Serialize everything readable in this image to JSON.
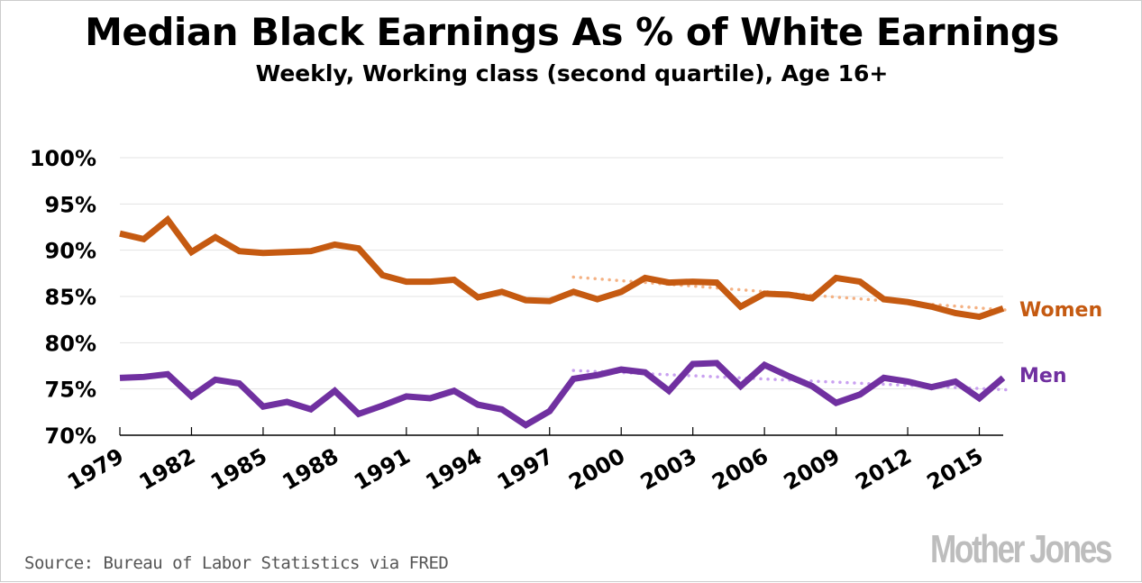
{
  "title": "Median Black Earnings As % of White Earnings",
  "subtitle": "Weekly, Working class (second quartile), Age 16+",
  "source": "Source: Bureau of Labor Statistics via FRED",
  "logo_text": "Mother Jones",
  "chart_data": {
    "type": "line",
    "title": "Median Black Earnings As % of White Earnings",
    "subtitle": "Weekly, Working class (second quartile), Age 16+",
    "xlabel": "",
    "ylabel": "",
    "ylim": [
      70,
      100
    ],
    "xlim": [
      1979,
      2016
    ],
    "grid": true,
    "y_ticks": [
      "70%",
      "75%",
      "80%",
      "85%",
      "90%",
      "95%",
      "100%"
    ],
    "y_tick_values": [
      70,
      75,
      80,
      85,
      90,
      95,
      100
    ],
    "x_ticks": [
      "1979",
      "1982",
      "1985",
      "1988",
      "1991",
      "1994",
      "1997",
      "2000",
      "2003",
      "2006",
      "2009",
      "2012",
      "2015"
    ],
    "x": [
      1979,
      1980,
      1981,
      1982,
      1983,
      1984,
      1985,
      1986,
      1987,
      1988,
      1989,
      1990,
      1991,
      1992,
      1993,
      1994,
      1995,
      1996,
      1997,
      1998,
      1999,
      2000,
      2001,
      2002,
      2003,
      2004,
      2005,
      2006,
      2007,
      2008,
      2009,
      2010,
      2011,
      2012,
      2013,
      2014,
      2015,
      2016
    ],
    "series": [
      {
        "name": "Women",
        "color": "#c55a11",
        "values": [
          91.8,
          91.2,
          93.3,
          89.8,
          91.4,
          89.9,
          89.7,
          89.8,
          89.9,
          90.6,
          90.2,
          87.3,
          86.6,
          86.6,
          86.8,
          84.9,
          85.5,
          84.6,
          84.5,
          85.5,
          84.7,
          85.5,
          87.0,
          86.5,
          86.6,
          86.5,
          83.9,
          85.3,
          85.2,
          84.8,
          87.0,
          86.6,
          84.7,
          84.4,
          83.9,
          83.2,
          82.8,
          83.7
        ]
      },
      {
        "name": "Men",
        "color": "#7030a0",
        "values": [
          76.2,
          76.3,
          76.6,
          74.2,
          76.0,
          75.6,
          73.1,
          73.6,
          72.8,
          74.8,
          72.3,
          73.2,
          74.2,
          74.0,
          74.8,
          73.3,
          72.8,
          71.1,
          72.6,
          76.1,
          76.5,
          77.1,
          76.8,
          74.8,
          77.7,
          77.8,
          75.3,
          77.6,
          76.4,
          75.3,
          73.5,
          74.4,
          76.2,
          75.8,
          75.2,
          75.8,
          74.0,
          76.2
        ]
      }
    ],
    "trendlines": [
      {
        "series": "Women",
        "style": "dotted",
        "color": "#f4b183",
        "x": [
          1998,
          2016.3
        ],
        "y": [
          87.1,
          83.5
        ]
      },
      {
        "series": "Men",
        "style": "dotted",
        "color": "#c9a0f0",
        "x": [
          1998,
          2016.3
        ],
        "y": [
          77.0,
          74.9
        ]
      }
    ],
    "legend": "direct labels at right"
  }
}
